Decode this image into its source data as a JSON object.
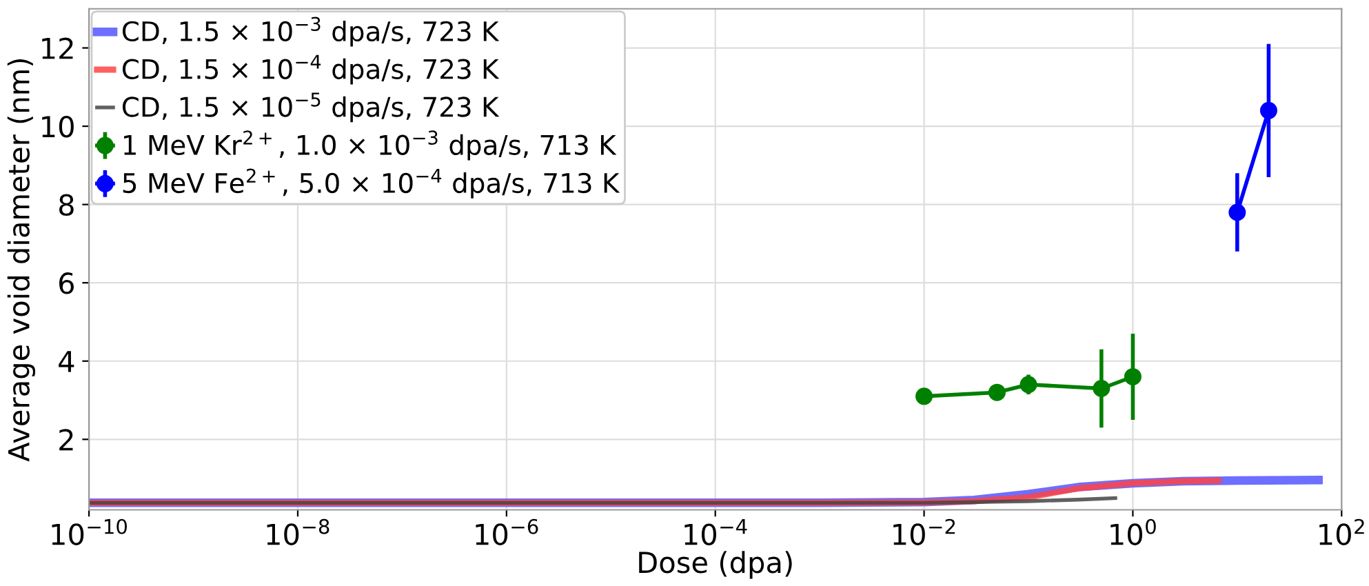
{
  "chart_data": {
    "type": "line",
    "xlabel": "Dose (dpa)",
    "ylabel": "Average void diameter (nm)",
    "log": "x",
    "xlim": [
      1e-10,
      100
    ],
    "xticks": [
      {
        "value": 1e-10,
        "label": "10$^{−10}$"
      },
      {
        "value": 1e-08,
        "label": "10$^{−8}$"
      },
      {
        "value": 1e-06,
        "label": "10$^{−6}$"
      },
      {
        "value": 0.0001,
        "label": "10$^{−4}$"
      },
      {
        "value": 0.01,
        "label": "10$^{−2}$"
      },
      {
        "value": 1,
        "label": "10$^{0}$"
      },
      {
        "value": 100,
        "label": "10$^{2}$"
      }
    ],
    "ylim": [
      0.2,
      13
    ],
    "yticks": [
      2,
      4,
      6,
      8,
      10,
      12
    ],
    "grid": true,
    "legend": "top left",
    "series": [
      {
        "name": "CD, 1.5 × 10$^{−3}$ dpa/s, 723 K",
        "color": "#5555ff",
        "marker": "none",
        "x": [
          1e-10,
          0.001,
          0.01,
          0.03,
          0.1,
          0.3,
          1,
          3,
          10,
          60
        ],
        "values": [
          0.38,
          0.38,
          0.4,
          0.45,
          0.6,
          0.78,
          0.88,
          0.93,
          0.95,
          0.96
        ]
      },
      {
        "name": "CD, 1.5 × 10$^{−4}$ dpa/s, 723 K",
        "color": "#ff4444",
        "marker": "none",
        "x": [
          1e-10,
          0.001,
          0.01,
          0.03,
          0.1,
          0.3,
          1,
          3,
          6.6
        ],
        "values": [
          0.38,
          0.38,
          0.39,
          0.42,
          0.52,
          0.75,
          0.88,
          0.93,
          0.95
        ]
      },
      {
        "name": "CD, 1.5 × 10$^{−5}$ dpa/s, 723 K",
        "color": "#444444",
        "marker": "none",
        "x": [
          1e-10,
          0.001,
          0.01,
          0.1,
          0.3,
          0.68
        ],
        "values": [
          0.38,
          0.38,
          0.38,
          0.42,
          0.46,
          0.5
        ]
      },
      {
        "name": "1 MeV Kr$^{2+}$, 1.0 × 10$^{−3}$ dpa/s, 713 K",
        "color": "#008000",
        "marker": "circle",
        "x": [
          0.01,
          0.05,
          0.1,
          0.5,
          1
        ],
        "values": [
          3.1,
          3.2,
          3.4,
          3.3,
          3.6
        ],
        "errors": [
          0.2,
          0.2,
          0.25,
          1.0,
          1.1
        ]
      },
      {
        "name": "5 MeV Fe$^{2+}$, 5.0 × 10$^{−4}$ dpa/s, 713 K",
        "color": "#0000ff",
        "marker": "circle",
        "x": [
          10,
          20
        ],
        "values": [
          7.8,
          10.4
        ],
        "errors": [
          1.0,
          1.7
        ]
      }
    ]
  }
}
